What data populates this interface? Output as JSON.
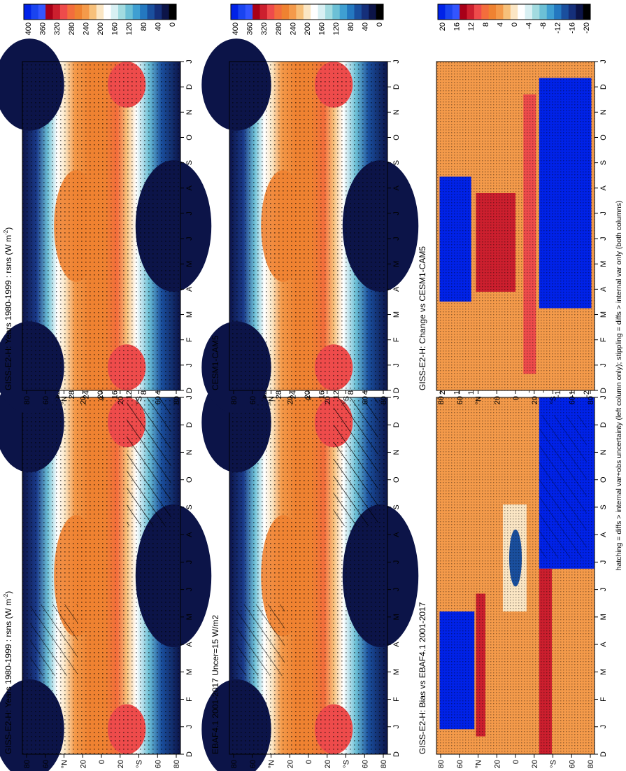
{
  "footnote": "hatching = diffs > internal var+obs uncertainty (left column only); stippling = diffs > internal var only (both columns)",
  "chart_data": [
    {
      "id": "p1",
      "type": "heatmap",
      "title": "GISS-E2-H: Years 1980-1999 : rsns (W m",
      "title_sup": "-2",
      "title_end": ")",
      "kind": "abs",
      "hatch_band": true,
      "stipple": "mixed"
    },
    {
      "id": "p2",
      "type": "heatmap",
      "title": "EBAF4.1 2001-2017 Uncer=15 W/m2",
      "kind": "abs",
      "hatch_band": true,
      "stipple": "mixed"
    },
    {
      "id": "p3",
      "type": "heatmap",
      "title": "GISS-E2-H: Bias vs EBAF4.1 2001-2017",
      "kind": "diff_bias",
      "hatch_band": true,
      "stipple": "dense"
    },
    {
      "id": "p4",
      "type": "heatmap",
      "title": "GISS-E2-H: Years 1980-1999 : rsns (W m",
      "title_sup": "-2",
      "title_end": ")",
      "kind": "abs",
      "hatch_band": false,
      "stipple": "mixed"
    },
    {
      "id": "p5",
      "type": "heatmap",
      "title": "CESM1-CAM5",
      "kind": "abs",
      "hatch_band": false,
      "stipple": "mixed"
    },
    {
      "id": "p6",
      "type": "heatmap",
      "title": "GISS-E2-H: Change vs CESM1-CAM5",
      "kind": "diff_change",
      "hatch_band": false,
      "stipple": "dense"
    }
  ],
  "axes": {
    "months": [
      "D",
      "J",
      "F",
      "M",
      "A",
      "M",
      "J",
      "J",
      "A",
      "S",
      "O",
      "N",
      "D",
      "J"
    ],
    "lat_ticks": [
      "80",
      "60",
      "°N",
      "20",
      "0",
      "20",
      "°S",
      "60",
      "80"
    ],
    "lat_values": [
      80,
      60,
      40,
      20,
      0,
      -20,
      -40,
      -60,
      -80
    ]
  },
  "colorbars": {
    "abs": {
      "labels": [
        "400",
        "360",
        "320",
        "280",
        "240",
        "200",
        "160",
        "120",
        "80",
        "40",
        "0"
      ],
      "colors": [
        "#0022e8",
        "#1a44f0",
        "#3355ff",
        "#a80018",
        "#cc1f2e",
        "#ee4b4b",
        "#f36d3c",
        "#ef8231",
        "#f49a4a",
        "#f7c07a",
        "#fbe6c4",
        "#ffffff",
        "#d8f0f3",
        "#a2dbe0",
        "#6cc0d6",
        "#3f9fd2",
        "#2478c0",
        "#1a4f9e",
        "#152f7a",
        "#0c1448",
        "#000000"
      ]
    },
    "diff": {
      "labels": [
        "20",
        "16",
        "12",
        "8",
        "4",
        "0",
        "-4",
        "-8",
        "-12",
        "-16",
        "-20"
      ],
      "colors": [
        "#0022e8",
        "#1a44f0",
        "#3355ff",
        "#a80018",
        "#cc1f2e",
        "#ee4b4b",
        "#f36d3c",
        "#ef8231",
        "#f49a4a",
        "#f7c07a",
        "#fbe6c4",
        "#ffffff",
        "#d8f0f3",
        "#a2dbe0",
        "#6cc0d6",
        "#3f9fd2",
        "#2478c0",
        "#1a4f9e",
        "#152f7a",
        "#0c1448",
        "#000000"
      ]
    }
  }
}
